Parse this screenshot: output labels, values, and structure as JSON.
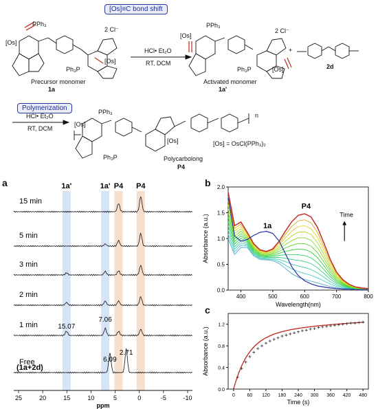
{
  "scheme": {
    "box1": "[Os]≡C bond shift",
    "box2": "Polymerization",
    "precursor_label": "Precursor monomer",
    "precursor_id": "1a",
    "reagent1_top": "HCl• Et₂O",
    "reagent1_bottom": "RT, DCM",
    "activated_label": "Activated monomer",
    "activated_id": "1a'",
    "plus": "+",
    "linker_id": "2d",
    "reagent2_top": "HCl• Et₂O",
    "reagent2_bottom": "RT, DCM",
    "polymer_label": "Polycarbolong",
    "polymer_id": "P4",
    "os_def": "[Os] = OsCl(PPh₃)₂",
    "counterion": "2 Cl⁻",
    "pph3": "PPh₃",
    "ph3p": "Ph₃P",
    "os": "[Os]",
    "n": "n"
  },
  "panel_a": {
    "letter": "a",
    "column_labels": [
      "1a'",
      "1a'",
      "P4",
      "P4"
    ],
    "traces": [
      "15 min",
      "5 min",
      "3 min",
      "2 min",
      "1 min",
      "Free"
    ],
    "free_sub": "(1a+2d)",
    "peak_labels": [
      "15.07",
      "7.06",
      "6.09",
      "2.71"
    ],
    "xticks": [
      "25",
      "20",
      "15",
      "10",
      "5",
      "0",
      "-5",
      "-10"
    ],
    "xlabel": "ppm"
  },
  "chart_data": [
    {
      "type": "line",
      "panel": "b",
      "xlabel": "Wavelength(nm)",
      "ylabel": "Absorbance (a.u.)",
      "xlim": [
        360,
        800
      ],
      "ylim": [
        0,
        2.0
      ],
      "xticks": [
        400,
        500,
        600,
        700,
        800
      ],
      "yticks": [
        0.0,
        0.5,
        1.0,
        1.5,
        2.0
      ],
      "annotations": [
        "1a",
        "P4",
        "Time"
      ],
      "series": [
        {
          "name": "1a",
          "x": [
            360,
            380,
            400,
            420,
            440,
            460,
            480,
            500,
            520,
            540,
            560,
            580,
            600,
            620,
            640,
            660,
            680,
            700,
            720,
            740,
            760,
            780,
            800
          ],
          "values": [
            1.8,
            1.05,
            0.95,
            0.98,
            1.06,
            1.12,
            1.14,
            1.1,
            0.95,
            0.7,
            0.45,
            0.28,
            0.18,
            0.12,
            0.08,
            0.06,
            0.04,
            0.03,
            0.02,
            0.02,
            0.01,
            0.01,
            0.01
          ]
        },
        {
          "name": "P4 (final)",
          "x": [
            360,
            380,
            400,
            420,
            440,
            460,
            480,
            500,
            520,
            540,
            560,
            580,
            600,
            620,
            640,
            660,
            680,
            700,
            720,
            740,
            760,
            780,
            800
          ],
          "values": [
            1.9,
            1.25,
            1.32,
            1.12,
            0.9,
            0.78,
            0.75,
            0.8,
            0.95,
            1.15,
            1.33,
            1.45,
            1.48,
            1.42,
            1.22,
            0.92,
            0.6,
            0.35,
            0.2,
            0.11,
            0.06,
            0.04,
            0.03
          ]
        }
      ]
    },
    {
      "type": "scatter",
      "panel": "c",
      "xlabel": "Time (s)",
      "ylabel": "Absorbance (a.u.)",
      "xlim": [
        -20,
        500
      ],
      "ylim": [
        0,
        1.4
      ],
      "xticks": [
        0,
        60,
        120,
        180,
        240,
        300,
        360,
        420,
        480
      ],
      "yticks": [
        0.0,
        0.4,
        0.8,
        1.2
      ],
      "x": [
        0,
        15,
        30,
        45,
        60,
        75,
        90,
        105,
        120,
        135,
        150,
        165,
        180,
        195,
        210,
        225,
        240,
        255,
        270,
        285,
        300,
        315,
        330,
        345,
        360,
        375,
        390,
        405,
        420,
        435,
        450,
        465,
        480
      ],
      "values": [
        0.0,
        0.22,
        0.38,
        0.5,
        0.6,
        0.68,
        0.75,
        0.8,
        0.85,
        0.89,
        0.92,
        0.95,
        0.98,
        1.0,
        1.02,
        1.04,
        1.06,
        1.08,
        1.09,
        1.11,
        1.12,
        1.14,
        1.15,
        1.16,
        1.17,
        1.18,
        1.19,
        1.2,
        1.21,
        1.22,
        1.22,
        1.23,
        1.24
      ]
    }
  ]
}
